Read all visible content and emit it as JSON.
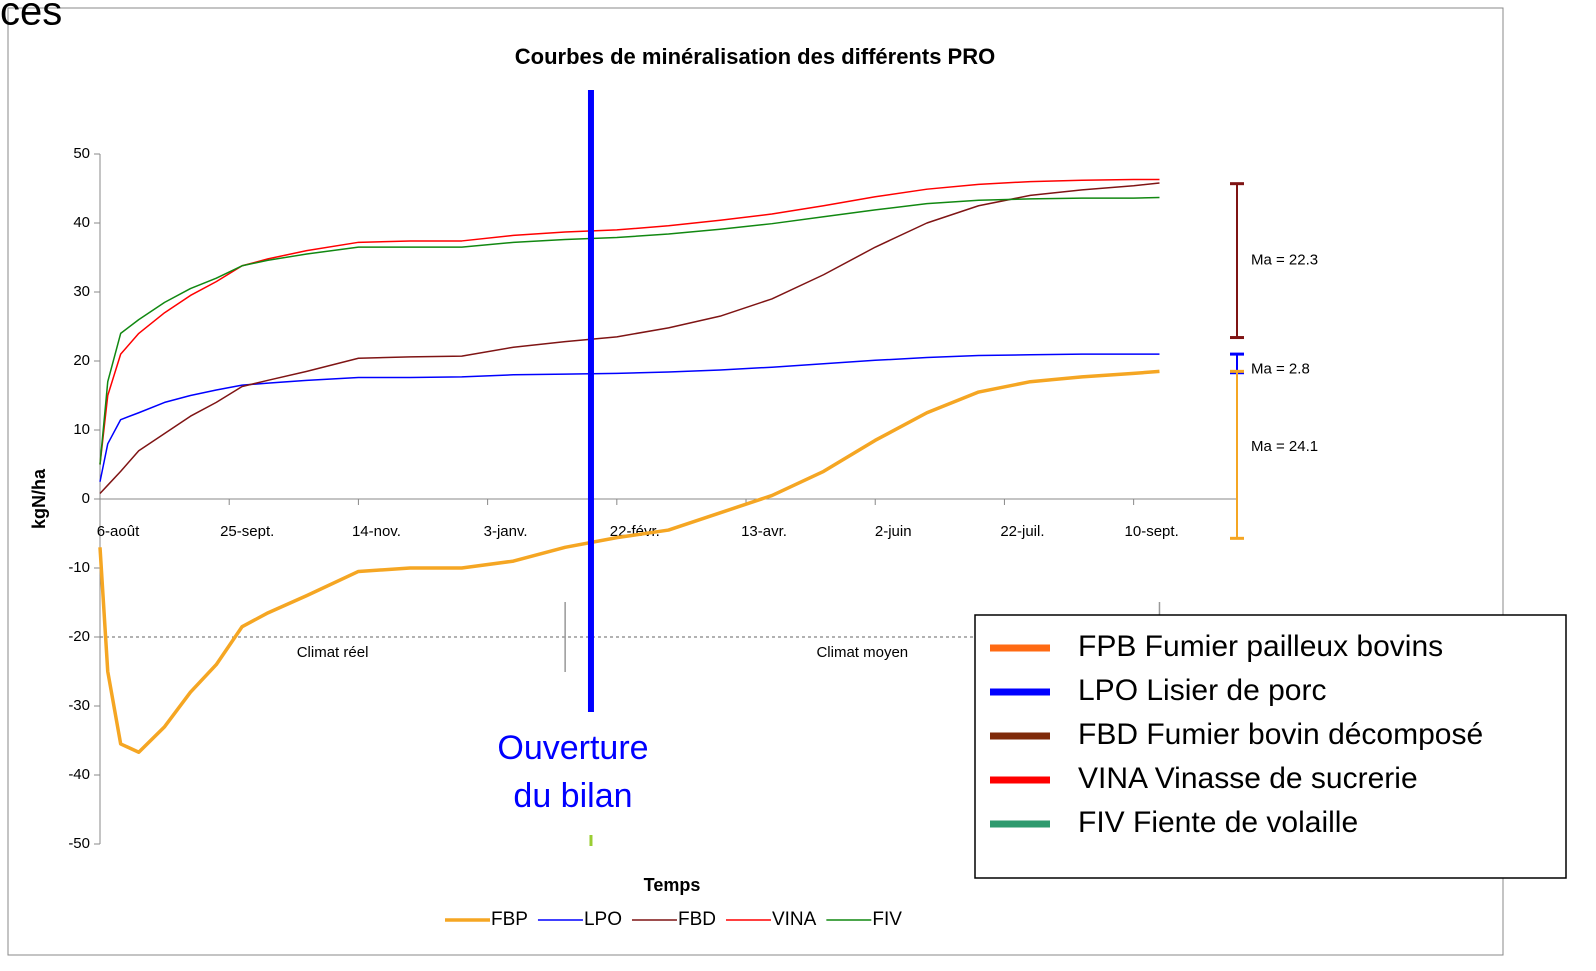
{
  "slide_title_fragment": "ces",
  "chart_data": {
    "type": "line",
    "title": "Courbes de minéralisation des différents PRO",
    "xlabel": "Temps",
    "ylabel": "kgN/ha",
    "x": [
      0,
      3,
      8,
      15,
      25,
      35,
      45,
      55,
      65,
      80,
      100,
      120,
      140,
      160,
      180,
      200,
      220,
      240,
      260,
      280,
      300,
      320,
      340,
      360,
      380,
      400,
      410
    ],
    "xlim": [
      0,
      440
    ],
    "xticks": [
      {
        "value": 0,
        "label": "6-août"
      },
      {
        "value": 50,
        "label": "25-sept."
      },
      {
        "value": 100,
        "label": "14-nov."
      },
      {
        "value": 150,
        "label": "3-janv."
      },
      {
        "value": 200,
        "label": "22-févr."
      },
      {
        "value": 250,
        "label": "13-avr."
      },
      {
        "value": 300,
        "label": "2-juin"
      },
      {
        "value": 350,
        "label": "22-juil."
      },
      {
        "value": 400,
        "label": "10-sept."
      }
    ],
    "ylim": [
      -50,
      50
    ],
    "yticks": [
      -50,
      -40,
      -30,
      -20,
      -10,
      0,
      10,
      20,
      30,
      40,
      50
    ],
    "series": [
      {
        "name": "FBP",
        "color": "#f5a623",
        "width": 3.5,
        "values": [
          -7,
          -25,
          -35.5,
          -36.7,
          -33,
          -28,
          -24,
          -18.5,
          -16.5,
          -14,
          -10.5,
          -10,
          -10,
          -9,
          -7,
          -5.6,
          -4.5,
          -2,
          0.5,
          4,
          8.5,
          12.5,
          15.5,
          17,
          17.7,
          18.2,
          18.5
        ]
      },
      {
        "name": "LPO",
        "color": "#0000ff",
        "width": 1.5,
        "values": [
          2.5,
          8,
          11.5,
          12.5,
          14,
          15,
          15.8,
          16.5,
          16.8,
          17.2,
          17.6,
          17.6,
          17.7,
          18,
          18.1,
          18.2,
          18.4,
          18.7,
          19.1,
          19.6,
          20.1,
          20.5,
          20.8,
          20.9,
          21,
          21,
          21
        ]
      },
      {
        "name": "FBD",
        "color": "#7f1414",
        "width": 1.5,
        "values": [
          0.8,
          2,
          4,
          7,
          9.5,
          12,
          14,
          16.3,
          17.2,
          18.5,
          20.4,
          20.6,
          20.7,
          22,
          22.8,
          23.5,
          24.8,
          26.5,
          29,
          32.5,
          36.5,
          40,
          42.5,
          44,
          44.8,
          45.4,
          45.8
        ]
      },
      {
        "name": "VINA",
        "color": "#ff0000",
        "width": 1.5,
        "values": [
          5,
          15,
          21,
          24,
          27,
          29.5,
          31.5,
          33.8,
          34.8,
          36,
          37.2,
          37.4,
          37.4,
          38.2,
          38.7,
          39,
          39.6,
          40.4,
          41.3,
          42.5,
          43.8,
          44.9,
          45.6,
          46,
          46.2,
          46.3,
          46.3
        ]
      },
      {
        "name": "FIV",
        "color": "#118811",
        "width": 1.5,
        "values": [
          5,
          17,
          24,
          26,
          28.5,
          30.5,
          32,
          33.8,
          34.6,
          35.5,
          36.5,
          36.5,
          36.5,
          37.2,
          37.6,
          37.9,
          38.4,
          39.1,
          39.9,
          40.9,
          41.9,
          42.8,
          43.3,
          43.5,
          43.6,
          43.6,
          43.7
        ]
      }
    ],
    "ranges": [
      {
        "label": "Ma = 22.3",
        "from": 23.4,
        "to": 45.7,
        "color": "#7f1414"
      },
      {
        "label": "Ma = 2.8",
        "from": 18.3,
        "to": 21,
        "color": "#0000ff"
      },
      {
        "label": "Ma = 24.1",
        "from": -5.7,
        "to": 18.5,
        "color": "#f5a623"
      }
    ],
    "hline": -20,
    "regions": [
      {
        "label": "Climat réel",
        "from": 0,
        "to": 180
      },
      {
        "label": "Climat moyen",
        "from": 180,
        "to": 410
      }
    ],
    "marker": {
      "x": 190,
      "label": [
        "Ouverture",
        "du bilan"
      ],
      "color": "#0000ff"
    },
    "legend_box": [
      {
        "name": "FPB Fumier pailleux bovins",
        "color": "#ff6a13"
      },
      {
        "name": "LPO Lisier de porc",
        "color": "#0000ff"
      },
      {
        "name": "FBD Fumier bovin décomposé",
        "color": "#7f2a0a"
      },
      {
        "name": "VINA Vinasse de sucrerie",
        "color": "#ff0000"
      },
      {
        "name": "FIV Fiente de volaille",
        "color": "#2e9a6e"
      }
    ]
  }
}
